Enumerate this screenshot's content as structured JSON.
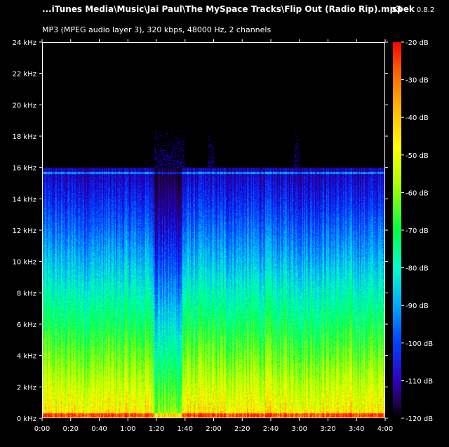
{
  "header": {
    "file_path": "...iTunes Media\\Music\\Jai Paul\\The MySpace Tracks\\Flip Out (Radio Rip).mp3",
    "app_name": "spek",
    "app_version": "0.8.2",
    "stream_info": "MP3 (MPEG audio layer 3), 320 kbps, 48000 Hz, 2 channels"
  },
  "chart_data": {
    "type": "heatmap",
    "title": "...iTunes Media\\Music\\Jai Paul\\The MySpace Tracks\\Flip Out (Radio Rip).mp3",
    "subtitle": "MP3 (MPEG audio layer 3), 320 kbps, 48000 Hz, 2 channels",
    "x_ticks": [
      "0:00",
      "0:20",
      "0:40",
      "1:00",
      "1:20",
      "1:40",
      "2:00",
      "2:20",
      "2:40",
      "3:00",
      "3:20",
      "3:40",
      "4:00"
    ],
    "x_tick_seconds": [
      0,
      20,
      40,
      60,
      80,
      100,
      120,
      140,
      160,
      180,
      200,
      220,
      240
    ],
    "xlim_seconds": [
      0,
      240
    ],
    "y_ticks": [
      "0 kHz",
      "2 kHz",
      "4 kHz",
      "6 kHz",
      "8 kHz",
      "10 kHz",
      "12 kHz",
      "14 kHz",
      "16 kHz",
      "18 kHz",
      "20 kHz",
      "22 kHz",
      "24 kHz"
    ],
    "y_tick_khz": [
      0,
      2,
      4,
      6,
      8,
      10,
      12,
      14,
      16,
      18,
      20,
      22,
      24
    ],
    "ylim_khz": [
      0,
      24
    ],
    "colorbar_ticks": [
      "-20 dB",
      "-30 dB",
      "-40 dB",
      "-50 dB",
      "-60 dB",
      "-70 dB",
      "-80 dB",
      "-90 dB",
      "-100 dB",
      "-110 dB",
      "-120 dB"
    ],
    "colorbar_range_db": [
      -120,
      -20
    ],
    "lowpass_cutoff_khz": 16,
    "colors": {
      "background": "#000000",
      "loud": "#ff0000",
      "mid": "#00ff44",
      "quiet": "#0040ff",
      "silent": "#000000"
    }
  }
}
